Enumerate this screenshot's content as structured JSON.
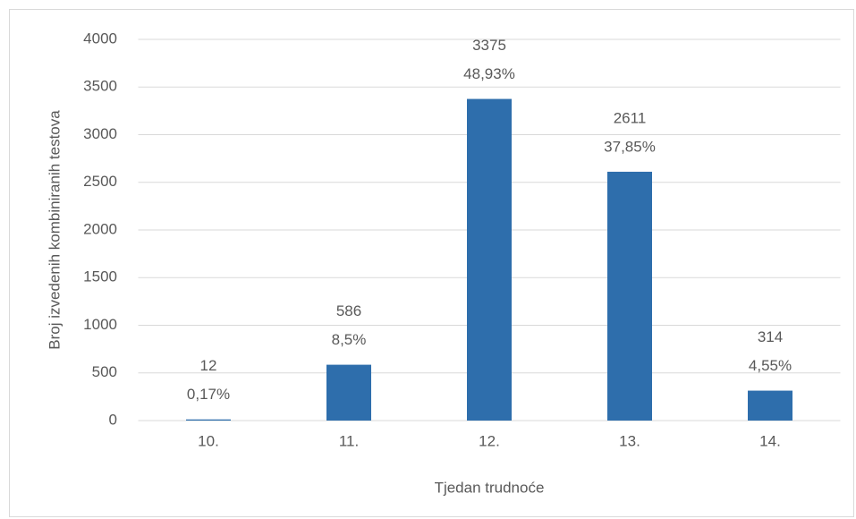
{
  "chart_data": {
    "type": "bar",
    "categories": [
      "10.",
      "11.",
      "12.",
      "13.",
      "14."
    ],
    "values": [
      12,
      586,
      3375,
      2611,
      314
    ],
    "percentages": [
      {
        "value": 0.17,
        "label": "0,17%"
      },
      {
        "value": 8.5,
        "label": "8,5%"
      },
      {
        "value": 48.93,
        "label": "48,93%"
      },
      {
        "value": 37.85,
        "label": "37,85%"
      },
      {
        "value": 4.55,
        "label": "4,55%"
      }
    ],
    "color": "#2e6eac",
    "ylim": [
      0,
      4000
    ],
    "yticks": [
      0,
      500,
      1000,
      1500,
      2000,
      2500,
      3000,
      3500,
      4000
    ],
    "grid": true,
    "xlabel": "Tjedan trudnoće",
    "ylabel": "Broj izvedenih kombiniranih testova"
  }
}
